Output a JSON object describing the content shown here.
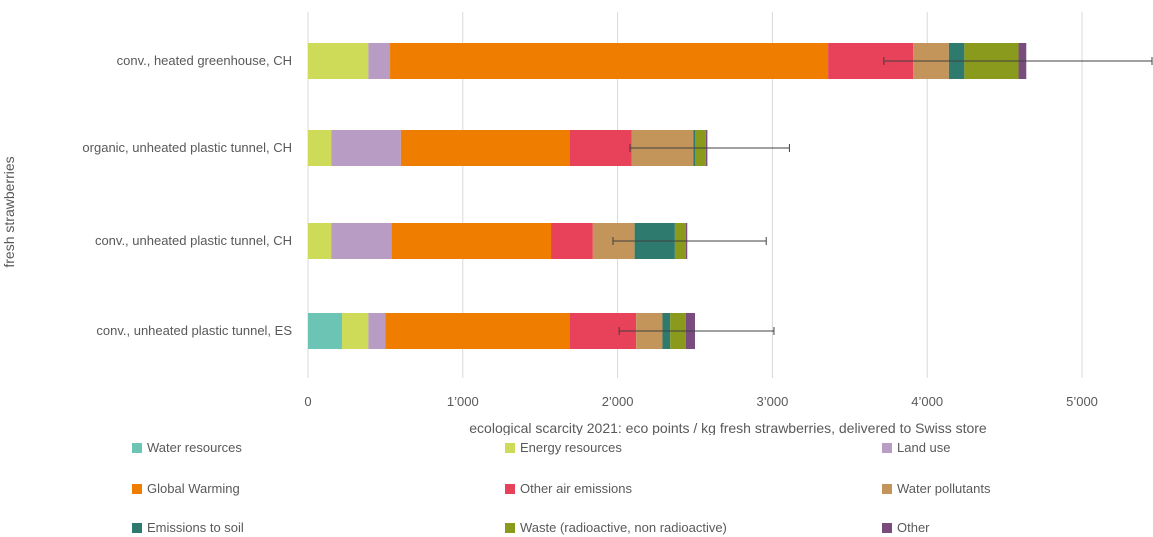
{
  "chart_data": {
    "type": "bar",
    "orientation": "horizontal",
    "stacked": true,
    "xlabel": "ecological scarcity 2021: eco points / kg fresh strawberries, delivered to Swiss store",
    "ylabel": "fresh strawberries",
    "xlim": [
      0,
      5400
    ],
    "xticks": [
      0,
      1000,
      2000,
      3000,
      4000,
      5000
    ],
    "xtick_labels": [
      "0",
      "1’000",
      "2’000",
      "3’000",
      "4’000",
      "5’000"
    ],
    "grid": "vertical",
    "legend_position": "bottom",
    "categories": [
      "conv., heated greenhouse, CH",
      "organic, unheated plastic tunnel, CH",
      "conv., unheated plastic tunnel, CH",
      "conv., unheated plastic tunnel, ES"
    ],
    "series": [
      {
        "name": "Water resources",
        "color": "#6cc4b4",
        "values": [
          0,
          0,
          0,
          220
        ]
      },
      {
        "name": "Energy resources",
        "color": "#cddb58",
        "values": [
          390,
          150,
          150,
          170
        ]
      },
      {
        "name": "Land use",
        "color": "#b99cc4",
        "values": [
          140,
          450,
          390,
          110
        ]
      },
      {
        "name": "Global Warming",
        "color": "#ef7e00",
        "values": [
          2830,
          1090,
          1030,
          1190
        ]
      },
      {
        "name": "Other air emissions",
        "color": "#e8415a",
        "values": [
          550,
          400,
          270,
          430
        ]
      },
      {
        "name": "Water pollutants",
        "color": "#c4955a",
        "values": [
          230,
          400,
          270,
          170
        ]
      },
      {
        "name": "Emissions to soil",
        "color": "#2e7a6e",
        "values": [
          100,
          10,
          260,
          50
        ]
      },
      {
        "name": "Waste (radioactive, non radioactive)",
        "color": "#8a9a1c",
        "values": [
          350,
          70,
          70,
          100
        ]
      },
      {
        "name": "Other",
        "color": "#7a4c7e",
        "values": [
          50,
          10,
          10,
          60
        ]
      }
    ],
    "error_bars": [
      {
        "low": 3720,
        "high": 5460
      },
      {
        "low": 2080,
        "high": 3110
      },
      {
        "low": 1970,
        "high": 2960
      },
      {
        "low": 2010,
        "high": 3010
      }
    ]
  }
}
